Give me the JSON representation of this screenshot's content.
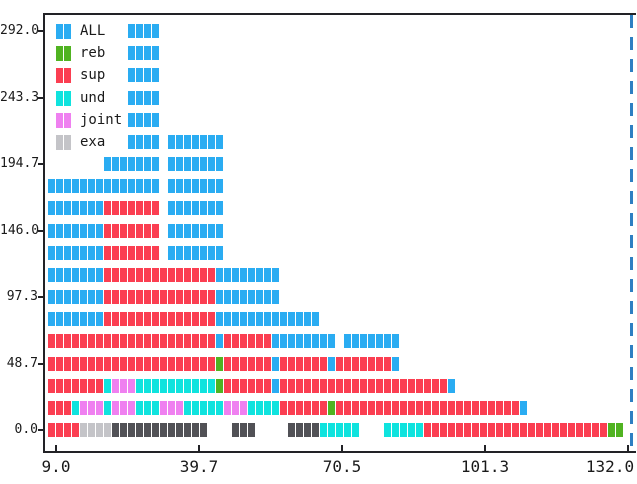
{
  "chart_data": {
    "type": "bar",
    "subtype": "horizontal-brick-rows",
    "title": "",
    "xlabel": "",
    "ylabel": "",
    "x_tick_labels": [
      "9.0",
      "39.7",
      "70.5",
      "101.3",
      "132.0"
    ],
    "y_tick_labels": [
      "292.0",
      "243.3",
      "194.7",
      "146.0",
      "97.3",
      "48.7",
      "0.0"
    ],
    "x_range": [
      9.0,
      132.0
    ],
    "y_range": [
      0.0,
      292.0
    ],
    "grid": false,
    "legend_position": "top-left",
    "legend": [
      {
        "label": "ALL",
        "color": "#2aacf2"
      },
      {
        "label": "reb",
        "color": "#50b321"
      },
      {
        "label": "sup",
        "color": "#fb3e51"
      },
      {
        "label": "und",
        "color": "#0fe3de"
      },
      {
        "label": "joint",
        "color": "#ef80f0"
      },
      {
        "label": "exa",
        "color": "#c4c4c8"
      }
    ],
    "extra_colors": {
      "dark": "#515156"
    },
    "marker_line": {
      "style": "dashed",
      "color": "#2e7fc2",
      "position": "right-edge"
    },
    "rows": [
      {
        "y": 292.0,
        "segments": [
          [
            "ALL",
            10,
            13
          ]
        ]
      },
      {
        "y": 275.8,
        "segments": [
          [
            "ALL",
            10,
            13
          ]
        ]
      },
      {
        "y": 259.6,
        "segments": [
          [
            "ALL",
            10,
            13
          ]
        ]
      },
      {
        "y": 243.3,
        "segments": [
          [
            "ALL",
            10,
            13
          ]
        ]
      },
      {
        "y": 227.1,
        "segments": [
          [
            "ALL",
            10,
            13
          ]
        ]
      },
      {
        "y": 210.9,
        "segments": [
          [
            "ALL",
            10,
            13
          ],
          [
            "ALL",
            15,
            21
          ]
        ]
      },
      {
        "y": 194.7,
        "segments": [
          [
            "ALL",
            7,
            13
          ],
          [
            "ALL",
            15,
            21
          ]
        ]
      },
      {
        "y": 178.4,
        "segments": [
          [
            "ALL",
            0,
            13
          ],
          [
            "ALL",
            15,
            21
          ]
        ]
      },
      {
        "y": 162.2,
        "segments": [
          [
            "ALL",
            0,
            6
          ],
          [
            "sup",
            7,
            13
          ],
          [
            "ALL",
            15,
            21
          ]
        ]
      },
      {
        "y": 146.0,
        "segments": [
          [
            "ALL",
            0,
            6
          ],
          [
            "sup",
            7,
            13
          ],
          [
            "ALL",
            15,
            21
          ]
        ]
      },
      {
        "y": 129.8,
        "segments": [
          [
            "ALL",
            0,
            6
          ],
          [
            "sup",
            7,
            13
          ],
          [
            "ALL",
            15,
            21
          ]
        ]
      },
      {
        "y": 113.6,
        "segments": [
          [
            "ALL",
            0,
            6
          ],
          [
            "sup",
            7,
            20
          ],
          [
            "ALL",
            21,
            28
          ]
        ]
      },
      {
        "y": 97.3,
        "segments": [
          [
            "ALL",
            0,
            6
          ],
          [
            "sup",
            7,
            20
          ],
          [
            "ALL",
            21,
            28
          ]
        ]
      },
      {
        "y": 81.1,
        "segments": [
          [
            "ALL",
            0,
            6
          ],
          [
            "sup",
            7,
            20
          ],
          [
            "ALL",
            21,
            33
          ]
        ]
      },
      {
        "y": 64.9,
        "segments": [
          [
            "sup",
            0,
            20
          ],
          [
            "ALL",
            21,
            21
          ],
          [
            "sup",
            22,
            27
          ],
          [
            "ALL",
            28,
            35
          ],
          [
            "ALL",
            37,
            43
          ]
        ]
      },
      {
        "y": 48.7,
        "segments": [
          [
            "sup",
            0,
            20
          ],
          [
            "reb",
            21,
            21
          ],
          [
            "sup",
            22,
            27
          ],
          [
            "ALL",
            28,
            28
          ],
          [
            "sup",
            29,
            34
          ],
          [
            "ALL",
            35,
            35
          ],
          [
            "sup",
            36,
            42
          ],
          [
            "ALL",
            43,
            43
          ]
        ]
      },
      {
        "y": 32.4,
        "segments": [
          [
            "sup",
            0,
            6
          ],
          [
            "und",
            7,
            7
          ],
          [
            "joint",
            8,
            10
          ],
          [
            "und",
            11,
            20
          ],
          [
            "reb",
            21,
            21
          ],
          [
            "sup",
            22,
            27
          ],
          [
            "ALL",
            28,
            28
          ],
          [
            "sup",
            29,
            49
          ],
          [
            "ALL",
            50,
            50
          ]
        ]
      },
      {
        "y": 16.2,
        "segments": [
          [
            "sup",
            0,
            2
          ],
          [
            "und",
            3,
            3
          ],
          [
            "joint",
            4,
            6
          ],
          [
            "und",
            7,
            7
          ],
          [
            "joint",
            8,
            10
          ],
          [
            "und",
            11,
            13
          ],
          [
            "joint",
            14,
            16
          ],
          [
            "und",
            17,
            21
          ],
          [
            "joint",
            22,
            24
          ],
          [
            "und",
            25,
            28
          ],
          [
            "sup",
            29,
            34
          ],
          [
            "reb",
            35,
            35
          ],
          [
            "sup",
            36,
            58
          ],
          [
            "ALL",
            59,
            59
          ]
        ]
      },
      {
        "y": 0.0,
        "segments": [
          [
            "sup",
            0,
            3
          ],
          [
            "exa",
            4,
            7
          ],
          [
            "dark",
            8,
            19
          ],
          [
            "dark",
            23,
            25
          ],
          [
            "dark",
            30,
            33
          ],
          [
            "und",
            34,
            38
          ],
          [
            "und",
            42,
            46
          ],
          [
            "sup",
            47,
            69
          ],
          [
            "reb",
            70,
            71
          ]
        ]
      }
    ]
  }
}
